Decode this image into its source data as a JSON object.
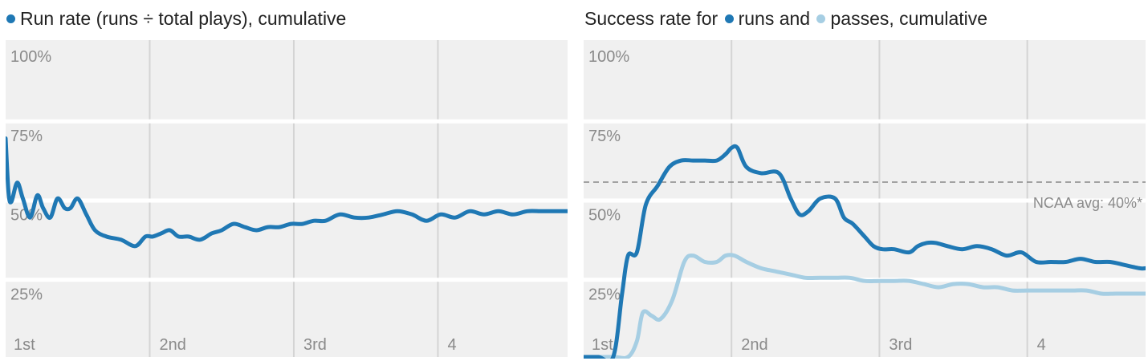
{
  "colors": {
    "runs": "#1f78b4",
    "passes": "#a6cee3",
    "band": "#f0f0f0",
    "gap": "#ffffff",
    "grid": "#d4d4d4",
    "tick_text": "#8a8a8a",
    "reference": "#888888"
  },
  "left": {
    "title_text": "Run rate (runs ÷ total plays), cumulative",
    "dot_color_name": "runs"
  },
  "right": {
    "title_prefix": "Success rate for",
    "title_runs": "runs and",
    "title_passes": "passes, cumulative"
  },
  "chart_data": [
    {
      "type": "line",
      "title": "Run rate (runs ÷ total plays), cumulative",
      "xlabel": "",
      "ylabel": "",
      "x_unit": "game time (quarters)",
      "xlim": [
        0,
        3.9
      ],
      "ylim": [
        0,
        100
      ],
      "y_ticks": [
        25,
        50,
        75,
        100
      ],
      "y_tick_labels": [
        "25%",
        "50%",
        "75%",
        "100%"
      ],
      "x_ticks": [
        0,
        1,
        2,
        3
      ],
      "x_tick_labels": [
        "1st",
        "2nd",
        "3rd",
        "4"
      ],
      "grid": true,
      "series": [
        {
          "color": "runs",
          "x": [
            0,
            0.02,
            0.04,
            0.08,
            0.12,
            0.17,
            0.22,
            0.26,
            0.31,
            0.36,
            0.41,
            0.45,
            0.5,
            0.56,
            0.62,
            0.7,
            0.8,
            0.9,
            0.97,
            1.02,
            1.08,
            1.14,
            1.2,
            1.27,
            1.35,
            1.43,
            1.5,
            1.58,
            1.66,
            1.74,
            1.82,
            1.9,
            1.98,
            2.06,
            2.14,
            2.22,
            2.32,
            2.42,
            2.52,
            2.62,
            2.72,
            2.82,
            2.92,
            3.02,
            3.12,
            3.22,
            3.32,
            3.42,
            3.52,
            3.62,
            3.72,
            3.82,
            3.9
          ],
          "values": [
            69,
            52,
            49,
            55,
            50,
            44,
            51,
            47,
            44,
            50,
            47,
            47,
            50,
            45,
            40,
            38,
            37,
            35,
            38,
            38,
            39,
            40,
            38,
            38,
            37,
            39,
            40,
            42,
            41,
            40,
            41,
            41,
            42,
            42,
            43,
            43,
            45,
            44,
            44,
            45,
            46,
            45,
            43,
            45,
            44,
            46,
            45,
            46,
            45,
            46,
            46,
            46,
            46
          ]
        }
      ]
    },
    {
      "type": "line",
      "title": "Success rate for runs and passes, cumulative",
      "xlabel": "",
      "ylabel": "",
      "x_unit": "game time (quarters)",
      "xlim": [
        0,
        3.8
      ],
      "ylim": [
        0,
        100
      ],
      "y_ticks": [
        25,
        50,
        75,
        100
      ],
      "y_tick_labels": [
        "25%",
        "50%",
        "75%",
        "100%"
      ],
      "x_ticks": [
        0,
        1,
        2,
        3
      ],
      "x_tick_labels": [
        "1st",
        "2nd",
        "3rd",
        "4"
      ],
      "grid": true,
      "reference_line": {
        "value": 40,
        "label": "NCAA avg: 40%*"
      },
      "series": [
        {
          "name": "runs",
          "color": "runs",
          "x": [
            0,
            0.1,
            0.2,
            0.26,
            0.3,
            0.36,
            0.42,
            0.5,
            0.58,
            0.66,
            0.74,
            0.82,
            0.9,
            0.96,
            1.0,
            1.04,
            1.1,
            1.2,
            1.32,
            1.4,
            1.46,
            1.52,
            1.6,
            1.7,
            1.76,
            1.82,
            1.9,
            1.96,
            2.02,
            2.1,
            2.2,
            2.26,
            2.32,
            2.38,
            2.46,
            2.56,
            2.66,
            2.76,
            2.86,
            2.96,
            3.06,
            3.16,
            3.26,
            3.36,
            3.46,
            3.56,
            3.66,
            3.76,
            3.8
          ],
          "values": [
            0,
            0,
            0,
            20,
            32,
            33,
            48,
            54,
            60,
            62,
            62,
            62,
            62,
            64,
            66,
            66,
            60,
            58,
            58,
            50,
            45,
            46,
            50,
            50,
            44,
            42,
            38,
            35,
            34,
            34,
            33,
            35,
            36,
            36,
            35,
            34,
            35,
            34,
            32,
            33,
            30,
            30,
            30,
            31,
            30,
            30,
            29,
            28,
            28
          ]
        },
        {
          "name": "passes",
          "color": "passes",
          "x": [
            0,
            0.2,
            0.3,
            0.36,
            0.4,
            0.46,
            0.52,
            0.6,
            0.68,
            0.74,
            0.82,
            0.9,
            0.96,
            1.02,
            1.1,
            1.2,
            1.3,
            1.4,
            1.5,
            1.6,
            1.7,
            1.8,
            1.9,
            2.0,
            2.1,
            2.2,
            2.3,
            2.4,
            2.5,
            2.6,
            2.7,
            2.8,
            2.9,
            3.0,
            3.1,
            3.2,
            3.3,
            3.4,
            3.5,
            3.6,
            3.7,
            3.8
          ],
          "values": [
            0,
            0,
            0,
            5,
            14,
            13,
            12,
            18,
            30,
            32,
            30,
            30,
            32,
            32,
            30,
            28,
            27,
            26,
            25,
            25,
            25,
            25,
            24,
            24,
            24,
            24,
            23,
            22,
            23,
            23,
            22,
            22,
            21,
            21,
            21,
            21,
            21,
            21,
            20,
            20,
            20,
            20
          ]
        }
      ]
    }
  ]
}
